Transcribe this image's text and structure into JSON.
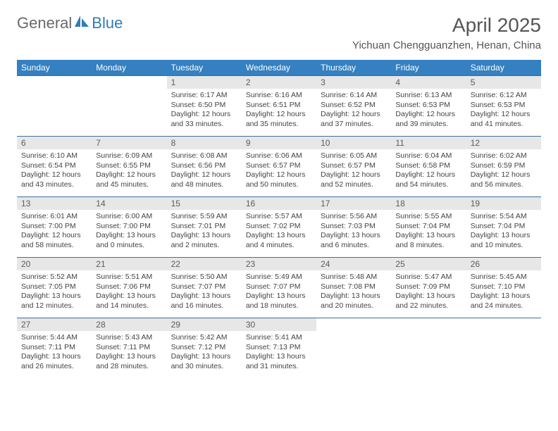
{
  "logo": {
    "text_general": "General",
    "text_blue": "Blue"
  },
  "title": "April 2025",
  "location": "Yichuan Chengguanzhen, Henan, China",
  "colors": {
    "header_bg": "#3480c0",
    "header_text": "#ffffff",
    "daynum_bg": "#e7e7e7",
    "row_border": "#3f6f9c",
    "body_text": "#444444",
    "title_text": "#555555",
    "logo_gray": "#6a6a6a",
    "logo_blue": "#2f7db8",
    "page_bg": "#ffffff"
  },
  "fonts": {
    "month_title_pt": 28,
    "location_pt": 15,
    "weekday_pt": 12,
    "daynum_pt": 12,
    "body_pt": 10.5,
    "logo_pt": 22
  },
  "weekdays": [
    "Sunday",
    "Monday",
    "Tuesday",
    "Wednesday",
    "Thursday",
    "Friday",
    "Saturday"
  ],
  "weeks": [
    [
      {
        "empty": true
      },
      {
        "empty": true
      },
      {
        "num": "1",
        "sunrise": "Sunrise: 6:17 AM",
        "sunset": "Sunset: 6:50 PM",
        "daylight1": "Daylight: 12 hours",
        "daylight2": "and 33 minutes."
      },
      {
        "num": "2",
        "sunrise": "Sunrise: 6:16 AM",
        "sunset": "Sunset: 6:51 PM",
        "daylight1": "Daylight: 12 hours",
        "daylight2": "and 35 minutes."
      },
      {
        "num": "3",
        "sunrise": "Sunrise: 6:14 AM",
        "sunset": "Sunset: 6:52 PM",
        "daylight1": "Daylight: 12 hours",
        "daylight2": "and 37 minutes."
      },
      {
        "num": "4",
        "sunrise": "Sunrise: 6:13 AM",
        "sunset": "Sunset: 6:53 PM",
        "daylight1": "Daylight: 12 hours",
        "daylight2": "and 39 minutes."
      },
      {
        "num": "5",
        "sunrise": "Sunrise: 6:12 AM",
        "sunset": "Sunset: 6:53 PM",
        "daylight1": "Daylight: 12 hours",
        "daylight2": "and 41 minutes."
      }
    ],
    [
      {
        "num": "6",
        "sunrise": "Sunrise: 6:10 AM",
        "sunset": "Sunset: 6:54 PM",
        "daylight1": "Daylight: 12 hours",
        "daylight2": "and 43 minutes."
      },
      {
        "num": "7",
        "sunrise": "Sunrise: 6:09 AM",
        "sunset": "Sunset: 6:55 PM",
        "daylight1": "Daylight: 12 hours",
        "daylight2": "and 45 minutes."
      },
      {
        "num": "8",
        "sunrise": "Sunrise: 6:08 AM",
        "sunset": "Sunset: 6:56 PM",
        "daylight1": "Daylight: 12 hours",
        "daylight2": "and 48 minutes."
      },
      {
        "num": "9",
        "sunrise": "Sunrise: 6:06 AM",
        "sunset": "Sunset: 6:57 PM",
        "daylight1": "Daylight: 12 hours",
        "daylight2": "and 50 minutes."
      },
      {
        "num": "10",
        "sunrise": "Sunrise: 6:05 AM",
        "sunset": "Sunset: 6:57 PM",
        "daylight1": "Daylight: 12 hours",
        "daylight2": "and 52 minutes."
      },
      {
        "num": "11",
        "sunrise": "Sunrise: 6:04 AM",
        "sunset": "Sunset: 6:58 PM",
        "daylight1": "Daylight: 12 hours",
        "daylight2": "and 54 minutes."
      },
      {
        "num": "12",
        "sunrise": "Sunrise: 6:02 AM",
        "sunset": "Sunset: 6:59 PM",
        "daylight1": "Daylight: 12 hours",
        "daylight2": "and 56 minutes."
      }
    ],
    [
      {
        "num": "13",
        "sunrise": "Sunrise: 6:01 AM",
        "sunset": "Sunset: 7:00 PM",
        "daylight1": "Daylight: 12 hours",
        "daylight2": "and 58 minutes."
      },
      {
        "num": "14",
        "sunrise": "Sunrise: 6:00 AM",
        "sunset": "Sunset: 7:00 PM",
        "daylight1": "Daylight: 13 hours",
        "daylight2": "and 0 minutes."
      },
      {
        "num": "15",
        "sunrise": "Sunrise: 5:59 AM",
        "sunset": "Sunset: 7:01 PM",
        "daylight1": "Daylight: 13 hours",
        "daylight2": "and 2 minutes."
      },
      {
        "num": "16",
        "sunrise": "Sunrise: 5:57 AM",
        "sunset": "Sunset: 7:02 PM",
        "daylight1": "Daylight: 13 hours",
        "daylight2": "and 4 minutes."
      },
      {
        "num": "17",
        "sunrise": "Sunrise: 5:56 AM",
        "sunset": "Sunset: 7:03 PM",
        "daylight1": "Daylight: 13 hours",
        "daylight2": "and 6 minutes."
      },
      {
        "num": "18",
        "sunrise": "Sunrise: 5:55 AM",
        "sunset": "Sunset: 7:04 PM",
        "daylight1": "Daylight: 13 hours",
        "daylight2": "and 8 minutes."
      },
      {
        "num": "19",
        "sunrise": "Sunrise: 5:54 AM",
        "sunset": "Sunset: 7:04 PM",
        "daylight1": "Daylight: 13 hours",
        "daylight2": "and 10 minutes."
      }
    ],
    [
      {
        "num": "20",
        "sunrise": "Sunrise: 5:52 AM",
        "sunset": "Sunset: 7:05 PM",
        "daylight1": "Daylight: 13 hours",
        "daylight2": "and 12 minutes."
      },
      {
        "num": "21",
        "sunrise": "Sunrise: 5:51 AM",
        "sunset": "Sunset: 7:06 PM",
        "daylight1": "Daylight: 13 hours",
        "daylight2": "and 14 minutes."
      },
      {
        "num": "22",
        "sunrise": "Sunrise: 5:50 AM",
        "sunset": "Sunset: 7:07 PM",
        "daylight1": "Daylight: 13 hours",
        "daylight2": "and 16 minutes."
      },
      {
        "num": "23",
        "sunrise": "Sunrise: 5:49 AM",
        "sunset": "Sunset: 7:07 PM",
        "daylight1": "Daylight: 13 hours",
        "daylight2": "and 18 minutes."
      },
      {
        "num": "24",
        "sunrise": "Sunrise: 5:48 AM",
        "sunset": "Sunset: 7:08 PM",
        "daylight1": "Daylight: 13 hours",
        "daylight2": "and 20 minutes."
      },
      {
        "num": "25",
        "sunrise": "Sunrise: 5:47 AM",
        "sunset": "Sunset: 7:09 PM",
        "daylight1": "Daylight: 13 hours",
        "daylight2": "and 22 minutes."
      },
      {
        "num": "26",
        "sunrise": "Sunrise: 5:45 AM",
        "sunset": "Sunset: 7:10 PM",
        "daylight1": "Daylight: 13 hours",
        "daylight2": "and 24 minutes."
      }
    ],
    [
      {
        "num": "27",
        "sunrise": "Sunrise: 5:44 AM",
        "sunset": "Sunset: 7:11 PM",
        "daylight1": "Daylight: 13 hours",
        "daylight2": "and 26 minutes."
      },
      {
        "num": "28",
        "sunrise": "Sunrise: 5:43 AM",
        "sunset": "Sunset: 7:11 PM",
        "daylight1": "Daylight: 13 hours",
        "daylight2": "and 28 minutes."
      },
      {
        "num": "29",
        "sunrise": "Sunrise: 5:42 AM",
        "sunset": "Sunset: 7:12 PM",
        "daylight1": "Daylight: 13 hours",
        "daylight2": "and 30 minutes."
      },
      {
        "num": "30",
        "sunrise": "Sunrise: 5:41 AM",
        "sunset": "Sunset: 7:13 PM",
        "daylight1": "Daylight: 13 hours",
        "daylight2": "and 31 minutes."
      },
      {
        "empty": true
      },
      {
        "empty": true
      },
      {
        "empty": true
      }
    ]
  ]
}
